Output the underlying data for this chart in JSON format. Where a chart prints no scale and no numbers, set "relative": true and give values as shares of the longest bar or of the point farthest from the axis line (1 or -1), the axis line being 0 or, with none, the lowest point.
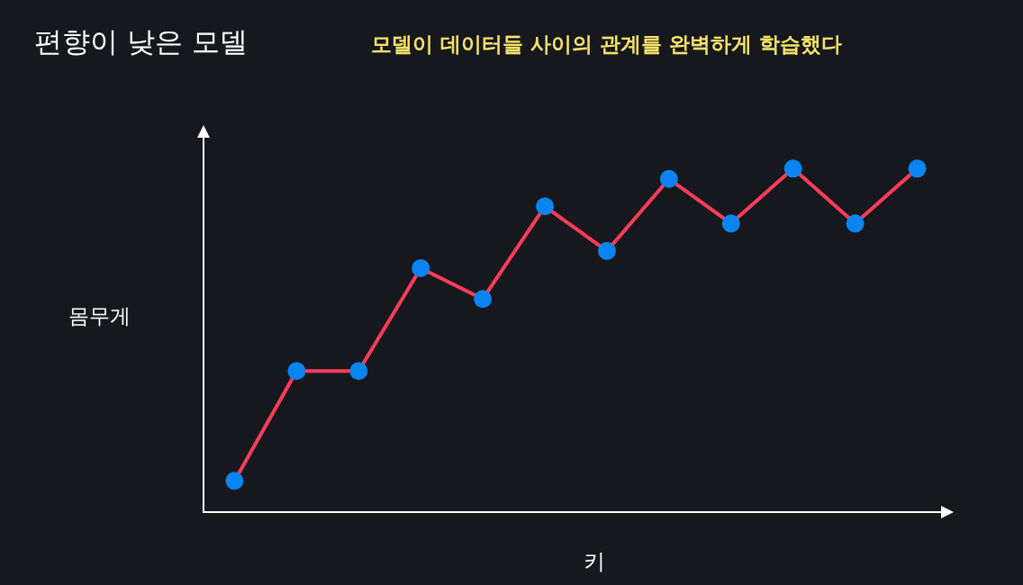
{
  "chart_data": {
    "type": "line",
    "title": "편향이 낮은 모델",
    "subtitle": "모델이 데이터들 사이의 관계를 완벽하게 학습했다",
    "xlabel": "키",
    "ylabel": "몸무게",
    "relative": true,
    "grid": false,
    "legend": false,
    "marker": "circle",
    "line_style": "solid",
    "categories": [
      null,
      null,
      null,
      null,
      null,
      null,
      null,
      null,
      null,
      null,
      null,
      null
    ],
    "series": [
      {
        "color": "#ff3d5a",
        "values": [
          0.09,
          0.41,
          0.41,
          0.71,
          0.62,
          0.89,
          0.76,
          0.97,
          0.84,
          1,
          0.84,
          1
        ]
      }
    ]
  }
}
